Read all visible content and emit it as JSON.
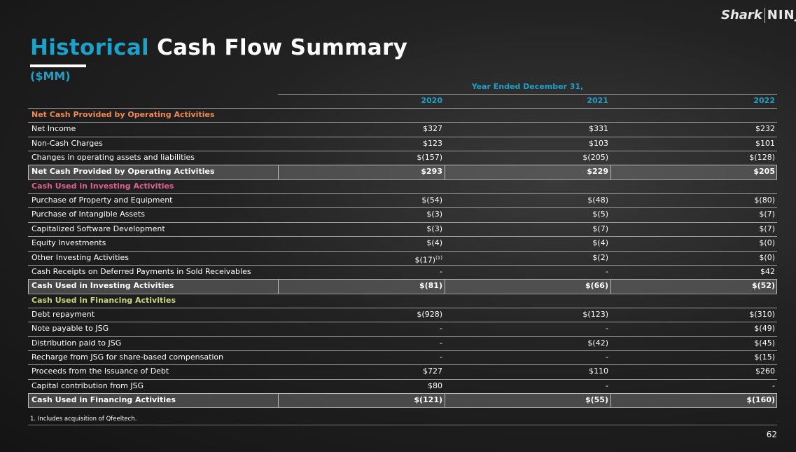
{
  "logo": {
    "left": "Shark",
    "right": "NINJA"
  },
  "header": {
    "title_accent": "Historical",
    "title_rest": "Cash Flow Summary",
    "subtitle": "($MM)"
  },
  "table": {
    "period_header": "Year Ended December 31,",
    "years": [
      "2020",
      "2021",
      "2022"
    ],
    "rows": [
      {
        "kind": "section",
        "label": "Net Cash Provided by Operating Activities",
        "color": "#f08a50"
      },
      {
        "kind": "item",
        "label": "Net Income",
        "values": [
          "$327",
          "$331",
          "$232"
        ]
      },
      {
        "kind": "item",
        "label": "Non-Cash Charges",
        "values": [
          "$123",
          "$103",
          "$101"
        ]
      },
      {
        "kind": "item",
        "label": "Changes in operating assets and liabilities",
        "values": [
          "$(157)",
          "$(205)",
          "$(128)"
        ]
      },
      {
        "kind": "total",
        "label": "Net Cash Provided by Operating Activities",
        "values": [
          "$293",
          "$229",
          "$205"
        ]
      },
      {
        "kind": "section",
        "label": "Cash Used in Investing Activities",
        "color": "#e0608f"
      },
      {
        "kind": "item",
        "label": "Purchase of Property and Equipment",
        "values": [
          "$(54)",
          "$(48)",
          "$(80)"
        ]
      },
      {
        "kind": "item",
        "label": "Purchase of Intangible Assets",
        "values": [
          "$(3)",
          "$(5)",
          "$(7)"
        ]
      },
      {
        "kind": "item",
        "label": "Capitalized Software Development",
        "values": [
          "$(3)",
          "$(7)",
          "$(7)"
        ]
      },
      {
        "kind": "item",
        "label": "Equity Investments",
        "values": [
          "$(4)",
          "$(4)",
          "$(0)"
        ]
      },
      {
        "kind": "item",
        "label": "Other Investing Activities",
        "values": [
          "$(17)",
          "$(2)",
          "$(0)"
        ],
        "footnote_ref": "(1)"
      },
      {
        "kind": "item",
        "label": "Cash Receipts on Deferred Payments in Sold Receivables",
        "values": [
          "-",
          "-",
          "$42"
        ]
      },
      {
        "kind": "total",
        "label": "Cash Used in Investing Activities",
        "values": [
          "$(81)",
          "$(66)",
          "$(52)"
        ]
      },
      {
        "kind": "section",
        "label": "Cash Used in Financing Activities",
        "color": "#c9d77c"
      },
      {
        "kind": "item",
        "label": "Debt repayment",
        "values": [
          "$(928)",
          "$(123)",
          "$(310)"
        ]
      },
      {
        "kind": "item",
        "label": "Note payable to JSG",
        "values": [
          "-",
          "-",
          "$(49)"
        ]
      },
      {
        "kind": "item",
        "label": "Distribution paid to JSG",
        "values": [
          "-",
          "$(42)",
          "$(45)"
        ]
      },
      {
        "kind": "item",
        "label": "Recharge from JSG for share-based compensation",
        "values": [
          "-",
          "-",
          "$(15)"
        ]
      },
      {
        "kind": "item",
        "label": "Proceeds from the Issuance of Debt",
        "values": [
          "$727",
          "$110",
          "$260"
        ]
      },
      {
        "kind": "item",
        "label": "Capital contribution from JSG",
        "values": [
          "$80",
          "-",
          "-"
        ]
      },
      {
        "kind": "total",
        "label": "Cash Used in Financing Activities",
        "values": [
          "$(121)",
          "$(55)",
          "$(160)"
        ]
      }
    ]
  },
  "footnote": "1.  Includes acquisition of Qfeeltech.",
  "page_number": "62"
}
